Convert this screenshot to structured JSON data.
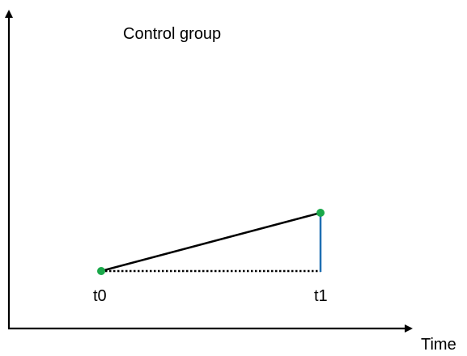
{
  "title": "Control group",
  "x_axis_label": "Time",
  "points": [
    {
      "label": "t0"
    },
    {
      "label": "t1"
    }
  ],
  "colors": {
    "axis": "#000000",
    "trend_line": "#000000",
    "baseline": "#000000",
    "difference_line": "#1f6fb2",
    "point": "#1aa84a"
  }
}
